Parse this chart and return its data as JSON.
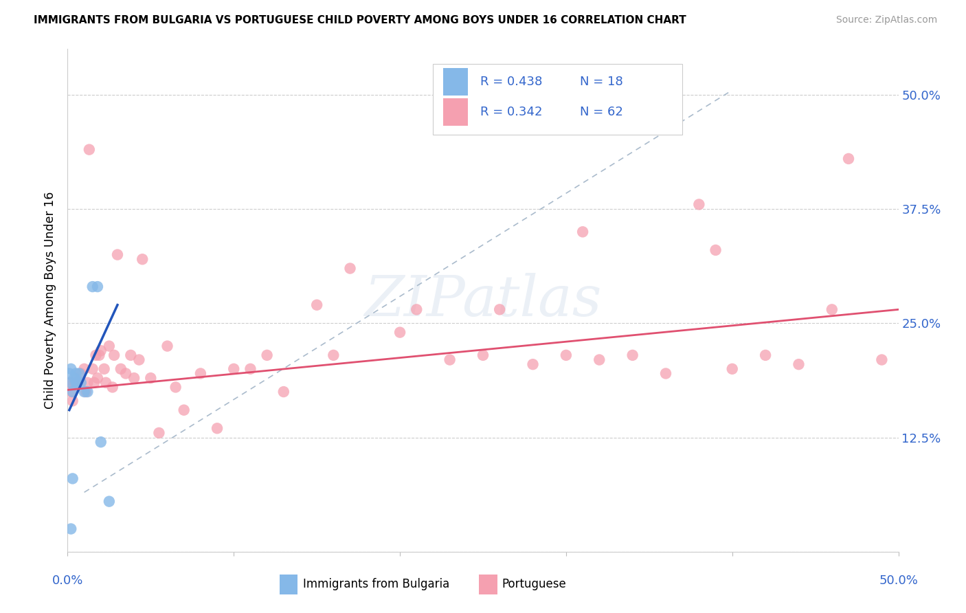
{
  "title": "IMMIGRANTS FROM BULGARIA VS PORTUGUESE CHILD POVERTY AMONG BOYS UNDER 16 CORRELATION CHART",
  "source": "Source: ZipAtlas.com",
  "ylabel": "Child Poverty Among Boys Under 16",
  "legend_immigrants_label": "Immigrants from Bulgaria",
  "legend_portuguese_label": "Portuguese",
  "blue_color": "#85B8E8",
  "blue_line_color": "#2255BB",
  "pink_color": "#F5A0B0",
  "pink_line_color": "#E05070",
  "dashed_line_color": "#AABBCC",
  "watermark": "ZIPatlas",
  "xlim": [
    0.0,
    0.5
  ],
  "ylim": [
    0.0,
    0.55
  ],
  "yticks": [
    0.0,
    0.125,
    0.25,
    0.375,
    0.5
  ],
  "ytick_labels": [
    "",
    "12.5%",
    "25.0%",
    "37.5%",
    "50.0%"
  ],
  "xticks": [
    0.0,
    0.1,
    0.2,
    0.3,
    0.4,
    0.5
  ],
  "blue_scatter_x": [
    0.001,
    0.002,
    0.002,
    0.003,
    0.004,
    0.005,
    0.005,
    0.006,
    0.007,
    0.008,
    0.01,
    0.012,
    0.015,
    0.018,
    0.02,
    0.025,
    0.003,
    0.002
  ],
  "blue_scatter_y": [
    0.195,
    0.2,
    0.185,
    0.175,
    0.19,
    0.185,
    0.195,
    0.185,
    0.195,
    0.185,
    0.175,
    0.175,
    0.29,
    0.29,
    0.12,
    0.055,
    0.08,
    0.025
  ],
  "pink_scatter_x": [
    0.001,
    0.002,
    0.003,
    0.004,
    0.005,
    0.006,
    0.008,
    0.01,
    0.011,
    0.012,
    0.013,
    0.015,
    0.016,
    0.017,
    0.018,
    0.019,
    0.02,
    0.022,
    0.023,
    0.025,
    0.027,
    0.028,
    0.03,
    0.032,
    0.035,
    0.038,
    0.04,
    0.043,
    0.045,
    0.05,
    0.055,
    0.06,
    0.065,
    0.07,
    0.08,
    0.09,
    0.1,
    0.11,
    0.12,
    0.13,
    0.15,
    0.16,
    0.17,
    0.2,
    0.21,
    0.23,
    0.25,
    0.26,
    0.28,
    0.3,
    0.31,
    0.32,
    0.34,
    0.36,
    0.38,
    0.39,
    0.4,
    0.42,
    0.44,
    0.46,
    0.47,
    0.49
  ],
  "pink_scatter_y": [
    0.185,
    0.175,
    0.165,
    0.185,
    0.19,
    0.185,
    0.195,
    0.2,
    0.175,
    0.185,
    0.44,
    0.2,
    0.185,
    0.215,
    0.19,
    0.215,
    0.22,
    0.2,
    0.185,
    0.225,
    0.18,
    0.215,
    0.325,
    0.2,
    0.195,
    0.215,
    0.19,
    0.21,
    0.32,
    0.19,
    0.13,
    0.225,
    0.18,
    0.155,
    0.195,
    0.135,
    0.2,
    0.2,
    0.215,
    0.175,
    0.27,
    0.215,
    0.31,
    0.24,
    0.265,
    0.21,
    0.215,
    0.265,
    0.205,
    0.215,
    0.35,
    0.21,
    0.215,
    0.195,
    0.38,
    0.33,
    0.2,
    0.215,
    0.205,
    0.265,
    0.43,
    0.21
  ],
  "blue_line_x": [
    0.001,
    0.03
  ],
  "blue_line_y": [
    0.155,
    0.27
  ],
  "pink_line_x": [
    0.0,
    0.5
  ],
  "pink_line_y": [
    0.177,
    0.265
  ],
  "dashed_line_x": [
    0.01,
    0.4
  ],
  "dashed_line_y": [
    0.065,
    0.505
  ],
  "legend_R_blue": "R = 0.438",
  "legend_N_blue": "N = 18",
  "legend_R_pink": "R = 0.342",
  "legend_N_pink": "N = 62"
}
